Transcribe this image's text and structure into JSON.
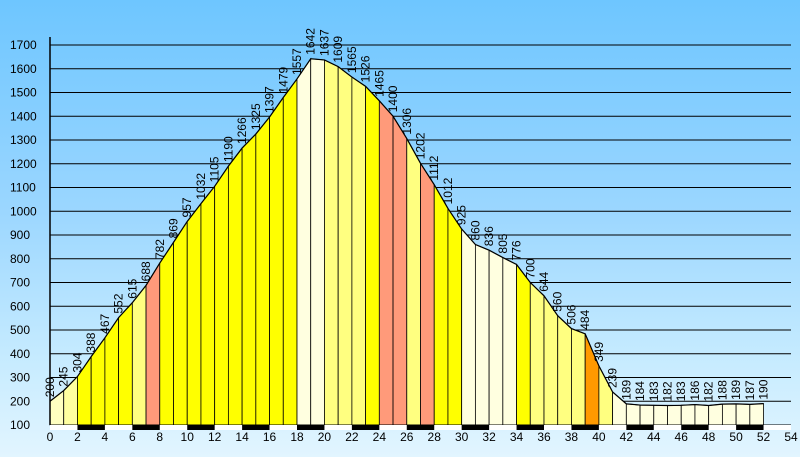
{
  "chart_data": {
    "type": "area",
    "x_unit_ticks": [
      "0",
      "2",
      "4",
      "6",
      "8",
      "10",
      "12",
      "14",
      "16",
      "18",
      "20",
      "22",
      "24",
      "26",
      "28",
      "30",
      "32",
      "34",
      "36",
      "38",
      "40",
      "42",
      "44",
      "46",
      "48",
      "50",
      "52",
      "54"
    ],
    "y_ticks": [
      "100",
      "200",
      "300",
      "400",
      "500",
      "600",
      "700",
      "800",
      "900",
      "1000",
      "1100",
      "1200",
      "1300",
      "1400",
      "1500",
      "1600",
      "1700"
    ],
    "ylim": [
      100,
      1700
    ],
    "xlim": [
      0,
      54
    ],
    "points": [
      {
        "x": 0,
        "y": 200,
        "label": "200"
      },
      {
        "x": 1,
        "y": 245,
        "label": "245"
      },
      {
        "x": 2,
        "y": 304,
        "label": "304"
      },
      {
        "x": 3,
        "y": 388,
        "label": "388"
      },
      {
        "x": 4,
        "y": 467,
        "label": "467"
      },
      {
        "x": 5,
        "y": 552,
        "label": "552"
      },
      {
        "x": 6,
        "y": 615,
        "label": "615"
      },
      {
        "x": 7,
        "y": 688,
        "label": "688"
      },
      {
        "x": 8,
        "y": 782,
        "label": "782"
      },
      {
        "x": 9,
        "y": 869,
        "label": "869"
      },
      {
        "x": 10,
        "y": 957,
        "label": "957"
      },
      {
        "x": 11,
        "y": 1032,
        "label": "1032"
      },
      {
        "x": 12,
        "y": 1105,
        "label": "1105"
      },
      {
        "x": 13,
        "y": 1190,
        "label": "1190"
      },
      {
        "x": 14,
        "y": 1266,
        "label": "1266"
      },
      {
        "x": 15,
        "y": 1325,
        "label": "1325"
      },
      {
        "x": 16,
        "y": 1397,
        "label": "1397"
      },
      {
        "x": 17,
        "y": 1479,
        "label": "1479"
      },
      {
        "x": 18,
        "y": 1557,
        "label": "1557"
      },
      {
        "x": 19,
        "y": 1642,
        "label": "1642"
      },
      {
        "x": 20,
        "y": 1637,
        "label": "1637"
      },
      {
        "x": 21,
        "y": 1609,
        "label": "1609"
      },
      {
        "x": 22,
        "y": 1565,
        "label": "1565"
      },
      {
        "x": 23,
        "y": 1526,
        "label": "1526"
      },
      {
        "x": 24,
        "y": 1465,
        "label": "1465"
      },
      {
        "x": 25,
        "y": 1400,
        "label": "1400"
      },
      {
        "x": 26,
        "y": 1306,
        "label": "1306"
      },
      {
        "x": 27,
        "y": 1202,
        "label": "1202"
      },
      {
        "x": 28,
        "y": 1112,
        "label": "1112"
      },
      {
        "x": 29,
        "y": 1012,
        "label": "1012"
      },
      {
        "x": 30,
        "y": 925,
        "label": "925"
      },
      {
        "x": 31,
        "y": 860,
        "label": "860"
      },
      {
        "x": 32,
        "y": 836,
        "label": "836"
      },
      {
        "x": 33,
        "y": 805,
        "label": "805"
      },
      {
        "x": 34,
        "y": 776,
        "label": "776"
      },
      {
        "x": 35,
        "y": 700,
        "label": "700"
      },
      {
        "x": 36,
        "y": 644,
        "label": "644"
      },
      {
        "x": 37,
        "y": 560,
        "label": "560"
      },
      {
        "x": 38,
        "y": 506,
        "label": "506"
      },
      {
        "x": 39,
        "y": 484,
        "label": "484"
      },
      {
        "x": 40,
        "y": 349,
        "label": "349"
      },
      {
        "x": 41,
        "y": 239,
        "label": "239"
      },
      {
        "x": 42,
        "y": 189,
        "label": "189"
      },
      {
        "x": 43,
        "y": 184,
        "label": "184"
      },
      {
        "x": 44,
        "y": 183,
        "label": "183"
      },
      {
        "x": 45,
        "y": 182,
        "label": "182"
      },
      {
        "x": 46,
        "y": 183,
        "label": "183"
      },
      {
        "x": 47,
        "y": 186,
        "label": "186"
      },
      {
        "x": 48,
        "y": 182,
        "label": "182"
      },
      {
        "x": 49,
        "y": 188,
        "label": "188"
      },
      {
        "x": 50,
        "y": 189,
        "label": "189"
      },
      {
        "x": 51,
        "y": 187,
        "label": "187"
      },
      {
        "x": 52,
        "y": 190,
        "label": "190"
      }
    ],
    "segment_colors": [
      "#ffffc0",
      "#ffffa0",
      "#ffff00",
      "#ffff00",
      "#ffff00",
      "#ffff00",
      "#ffff80",
      "#ff9a7a",
      "#ffff00",
      "#ffff00",
      "#ffff00",
      "#ffff00",
      "#ffff00",
      "#ffff00",
      "#ffff00",
      "#ffff00",
      "#ffff00",
      "#ffff00",
      "#ffffe0",
      "#ffffe0",
      "#ffff80",
      "#ffff80",
      "#ffff80",
      "#ffff00",
      "#ff9a7a",
      "#ff9a7a",
      "#ffff80",
      "#ff9a7a",
      "#ffff00",
      "#ffff00",
      "#ffffe0",
      "#ffffe0",
      "#ffffe0",
      "#ffffe0",
      "#ffff00",
      "#ffff80",
      "#ffff80",
      "#ffff80",
      "#ffff80",
      "#ff9900",
      "#ffff80",
      "#ffffe0",
      "#ffffe0",
      "#ffffe0",
      "#ffffe0",
      "#ffffe0",
      "#ffffe0",
      "#ffffe0",
      "#ffffe0",
      "#ffffe0",
      "#ffffe0",
      "#ffffe0"
    ],
    "grid": "horizontal",
    "colors": {
      "axis": "#000000",
      "outline": "#000000",
      "grid": "#000000"
    }
  }
}
